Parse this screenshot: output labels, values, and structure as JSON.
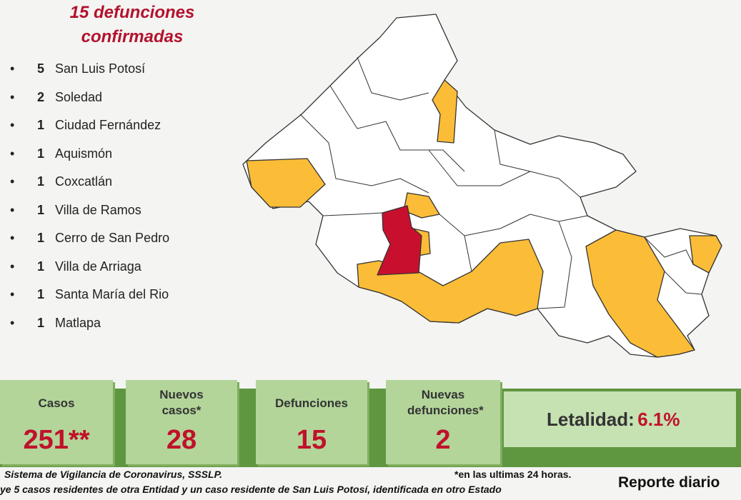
{
  "header": {
    "title_line1": "15 defunciones",
    "title_line2": "confirmadas"
  },
  "deaths_by_municipality": [
    {
      "count": "5",
      "name": "San Luis Potosí"
    },
    {
      "count": "2",
      "name": "Soledad"
    },
    {
      "count": "1",
      "name": "Ciudad Fernández"
    },
    {
      "count": "1",
      "name": "Aquismón"
    },
    {
      "count": "1",
      "name": "Coxcatlán"
    },
    {
      "count": "1",
      "name": "Villa de Ramos"
    },
    {
      "count": "1",
      "name": "Cerro de San Pedro"
    },
    {
      "count": "1",
      "name": "Villa de Arriaga"
    },
    {
      "count": "1",
      "name": "Santa María del Rio"
    },
    {
      "count": "1",
      "name": "Matlapa"
    }
  ],
  "stats": [
    {
      "label": "Casos",
      "value": "251**"
    },
    {
      "label": "Nuevos casos*",
      "value": "28"
    },
    {
      "label": "Defunciones",
      "value": "15"
    },
    {
      "label": "Nuevas defunciones*",
      "value": "2"
    }
  ],
  "lethality": {
    "label": "Letalidad:",
    "value": "6.1%"
  },
  "footer": {
    "source": "Sistema de Vigilancia de Coronavirus, SSSLP.",
    "note": "ye 5 casos residentes de otra Entidad y un caso residente de San Luis Potosí, identificada en otro Estado",
    "asterisk": "*en las ultimas 24 horas.",
    "report": "Reporte diario"
  }
}
